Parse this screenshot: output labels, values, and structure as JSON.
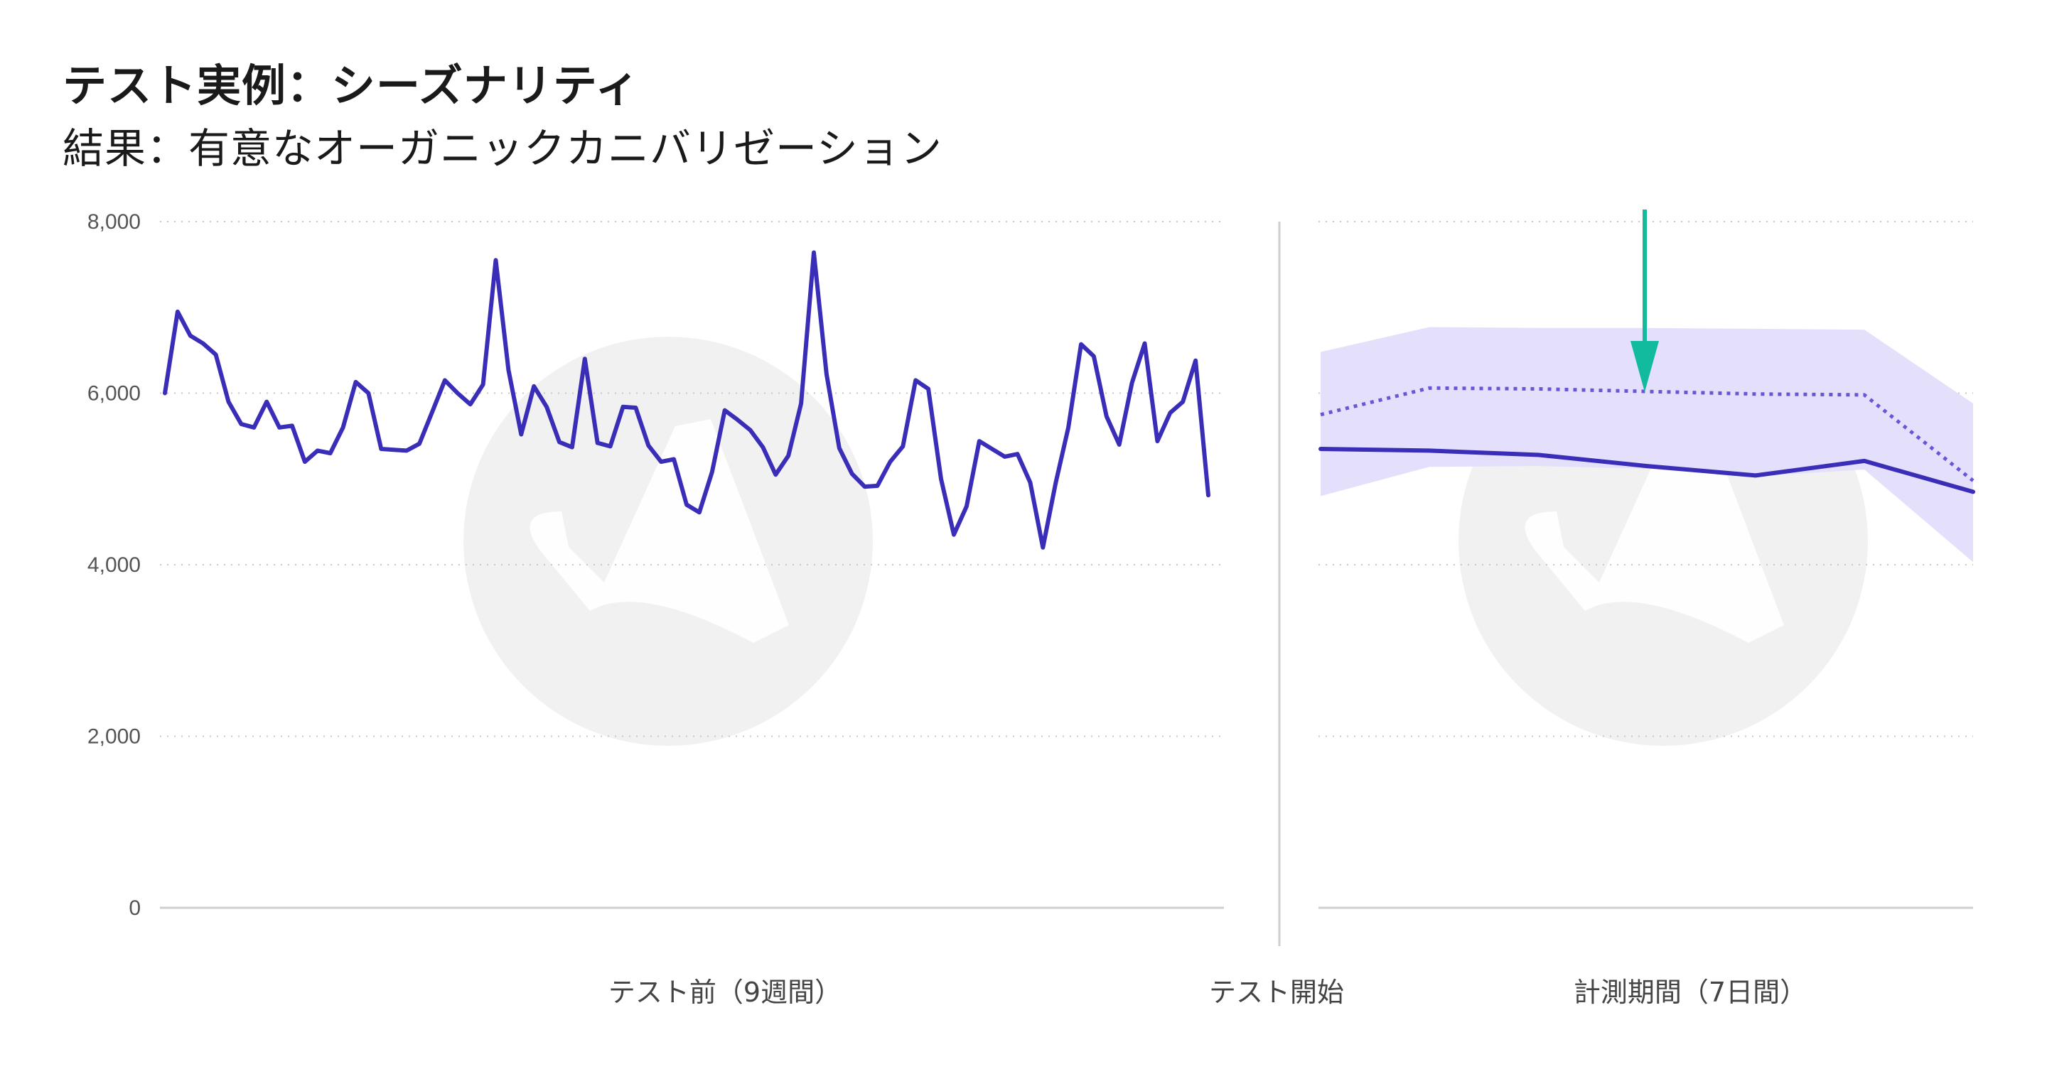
{
  "title": "テスト実例：シーズナリティ",
  "subtitle": "結果：有意なオーガニックカニバリゼーション",
  "chart_data": {
    "type": "line",
    "ylim": [
      0,
      8000
    ],
    "y_ticks": [
      "0",
      "2,000",
      "4,000",
      "6,000",
      "8,000"
    ],
    "y_tick_values": [
      0,
      2000,
      4000,
      6000,
      8000
    ],
    "grid": true,
    "x_labels": {
      "pre": "テスト前（9週間）",
      "start": "テスト開始",
      "post": "計測期間（7日間）"
    },
    "pre_test": {
      "values": [
        6000,
        6950,
        6670,
        6580,
        6450,
        5900,
        5640,
        5600,
        5900,
        5600,
        5620,
        5200,
        5330,
        5300,
        5600,
        6130,
        6000,
        5350,
        5340,
        5330,
        5410,
        5780,
        6150,
        6000,
        5870,
        6100,
        7550,
        6270,
        5520,
        6080,
        5840,
        5430,
        5370,
        6400,
        5420,
        5380,
        5840,
        5830,
        5390,
        5200,
        5230,
        4700,
        4610,
        5080,
        5800,
        5690,
        5570,
        5370,
        5050,
        5270,
        5880,
        7640,
        6220,
        5360,
        5060,
        4910,
        4920,
        5200,
        5380,
        6150,
        6050,
        5000,
        4350,
        4680,
        5440,
        5350,
        5260,
        5290,
        4960,
        4200,
        4950,
        5600,
        6570,
        6430,
        5730,
        5400,
        6120,
        6580,
        5440,
        5770,
        5900,
        6380,
        4810
      ]
    },
    "post_test": {
      "days": [
        1,
        2,
        3,
        4,
        5,
        6,
        7
      ],
      "actual": [
        5350,
        5330,
        5280,
        5150,
        5040,
        5210,
        4850
      ],
      "predicted": [
        5750,
        6060,
        6050,
        6020,
        5990,
        5980,
        4980
      ],
      "ci_upper": [
        6480,
        6770,
        6760,
        6760,
        6750,
        6740,
        5880
      ],
      "ci_lower": [
        4800,
        5140,
        5150,
        5120,
        5030,
        5110,
        4030
      ]
    },
    "colors": {
      "actual": "#3a2db8",
      "predicted": "#6b55d6",
      "band": "#e4e0fb",
      "arrow": "#12bb9c",
      "grid": "#c8c8c8",
      "divider": "#cfcfcf",
      "watermark": "#f1f1f1"
    }
  }
}
